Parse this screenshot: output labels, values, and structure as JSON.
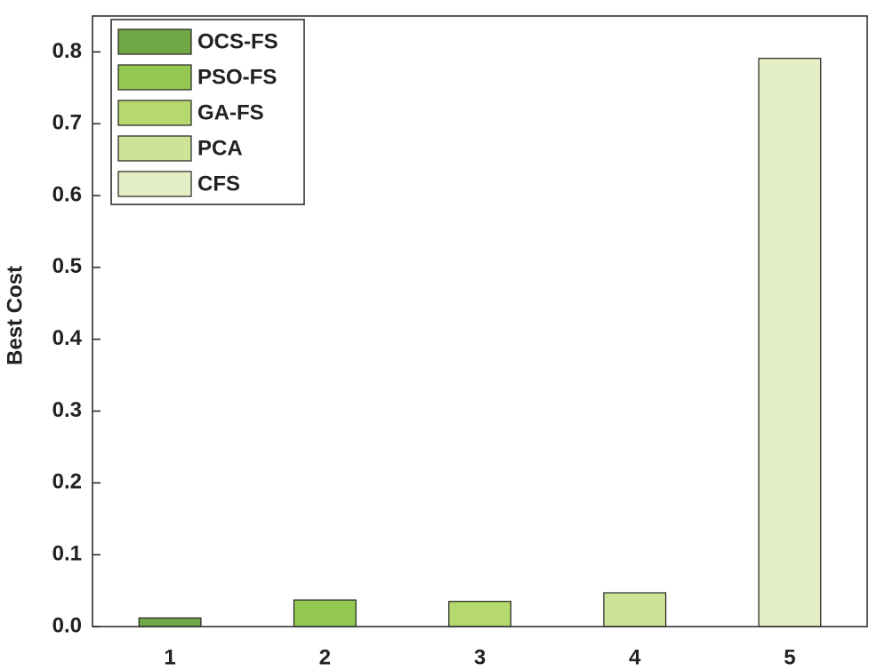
{
  "chart_data": {
    "type": "bar",
    "ylabel": "Best Cost",
    "categories": [
      "1",
      "2",
      "3",
      "4",
      "5"
    ],
    "series": [
      {
        "name": "OCS-FS",
        "color": "#70a845",
        "values": [
          0.012,
          null,
          null,
          null,
          null
        ]
      },
      {
        "name": "PSO-FS",
        "color": "#93c852",
        "values": [
          null,
          0.037,
          null,
          null,
          null
        ]
      },
      {
        "name": "GA-FS",
        "color": "#b5d96e",
        "values": [
          null,
          null,
          0.035,
          null,
          null
        ]
      },
      {
        "name": "PCA",
        "color": "#cde398",
        "values": [
          null,
          null,
          null,
          0.047,
          null
        ]
      },
      {
        "name": "CFS",
        "color": "#e4efc5",
        "values": [
          null,
          null,
          null,
          null,
          0.791
        ]
      }
    ],
    "ylim": [
      0,
      0.85
    ],
    "yticks": [
      {
        "value": 0,
        "label": "0.0"
      },
      0.1,
      0.2,
      0.3,
      0.4,
      0.5,
      0.6,
      0.7,
      0.8
    ],
    "legend": "upper left"
  }
}
